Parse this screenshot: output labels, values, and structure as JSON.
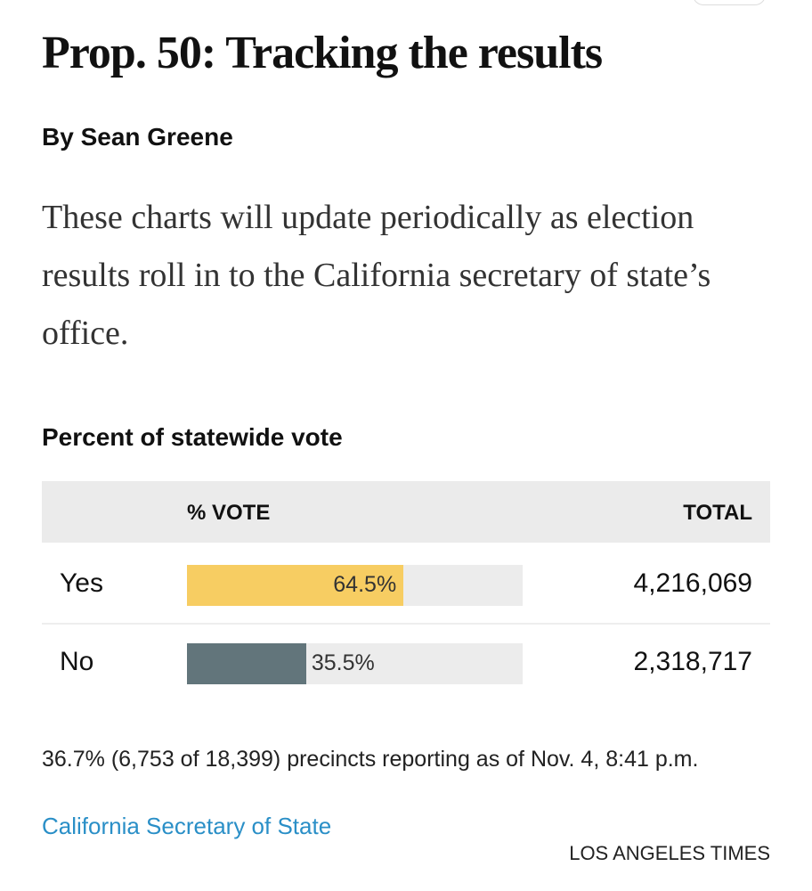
{
  "headline": "Prop. 50: Tracking the results",
  "byline": "By Sean Greene",
  "dek": "These charts will update periodically as election results roll in to the California secretary of state’s office.",
  "chart_data": {
    "type": "bar",
    "title": "Percent of statewide vote",
    "columns": [
      "% VOTE",
      "TOTAL"
    ],
    "categories": [
      "Yes",
      "No"
    ],
    "values": [
      64.5,
      35.5
    ],
    "value_labels": [
      "64.5%",
      "35.5%"
    ],
    "totals": [
      "4,216,069",
      "2,318,717"
    ],
    "colors": [
      "#f7cd62",
      "#62757b"
    ],
    "xlim": [
      0,
      100
    ]
  },
  "note": "36.7% (6,753 of 18,399) precincts reporting as of Nov. 4, 8:41 p.m.",
  "source": "California Secretary of State",
  "credit": "LOS ANGELES TIMES"
}
